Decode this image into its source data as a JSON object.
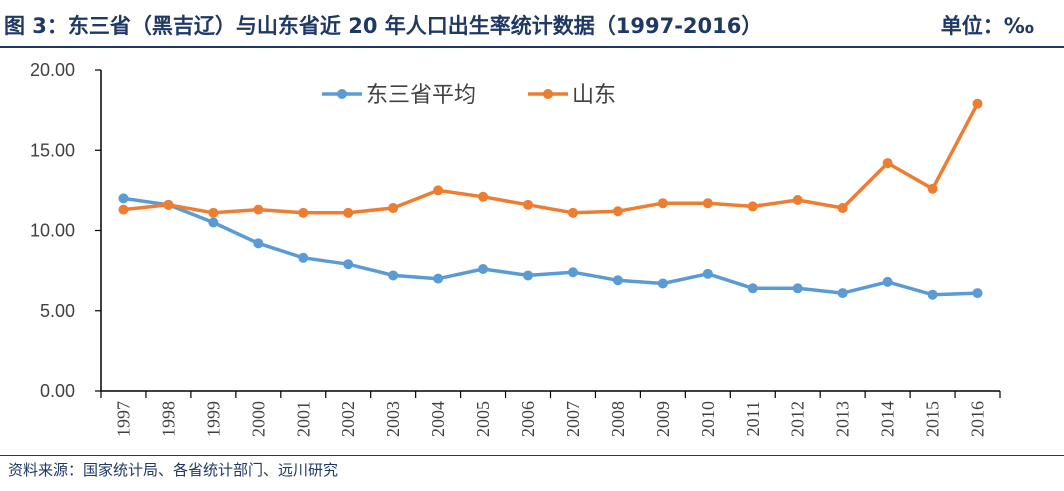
{
  "header": {
    "title": "图 3：东三省（黑吉辽）与山东省近 20 年人口出生率统计数据（1997-2016）",
    "unit": "单位：‰"
  },
  "source": "资料来源：国家统计局、各省统计部门、远川研究",
  "colors": {
    "text": "#1f3864",
    "series_dongsansheng": "#5b9bd5",
    "series_shandong": "#ed7d31",
    "axis": "#000000"
  },
  "chart_data": {
    "type": "line",
    "title": "",
    "xlabel": "",
    "ylabel": "",
    "x": [
      "1997",
      "1998",
      "1999",
      "2000",
      "2001",
      "2002",
      "2003",
      "2004",
      "2005",
      "2006",
      "2007",
      "2008",
      "2009",
      "2010",
      "2011",
      "2012",
      "2013",
      "2014",
      "2015",
      "2016"
    ],
    "ylim": [
      0,
      20
    ],
    "yticks": [
      "0.00",
      "5.00",
      "10.00",
      "15.00",
      "20.00"
    ],
    "grid": false,
    "legend_position": "top-center",
    "series": [
      {
        "name": "东三省平均",
        "color": "#5b9bd5",
        "values": [
          12.0,
          11.6,
          10.5,
          9.2,
          8.3,
          7.9,
          7.2,
          7.0,
          7.6,
          7.2,
          7.4,
          6.9,
          6.7,
          7.3,
          6.4,
          6.4,
          6.1,
          6.8,
          6.0,
          6.1
        ]
      },
      {
        "name": "山东",
        "color": "#ed7d31",
        "values": [
          11.3,
          11.6,
          11.1,
          11.3,
          11.1,
          11.1,
          11.4,
          12.5,
          12.1,
          11.6,
          11.1,
          11.2,
          11.7,
          11.7,
          11.5,
          11.9,
          11.4,
          14.2,
          12.6,
          17.9
        ]
      }
    ]
  }
}
